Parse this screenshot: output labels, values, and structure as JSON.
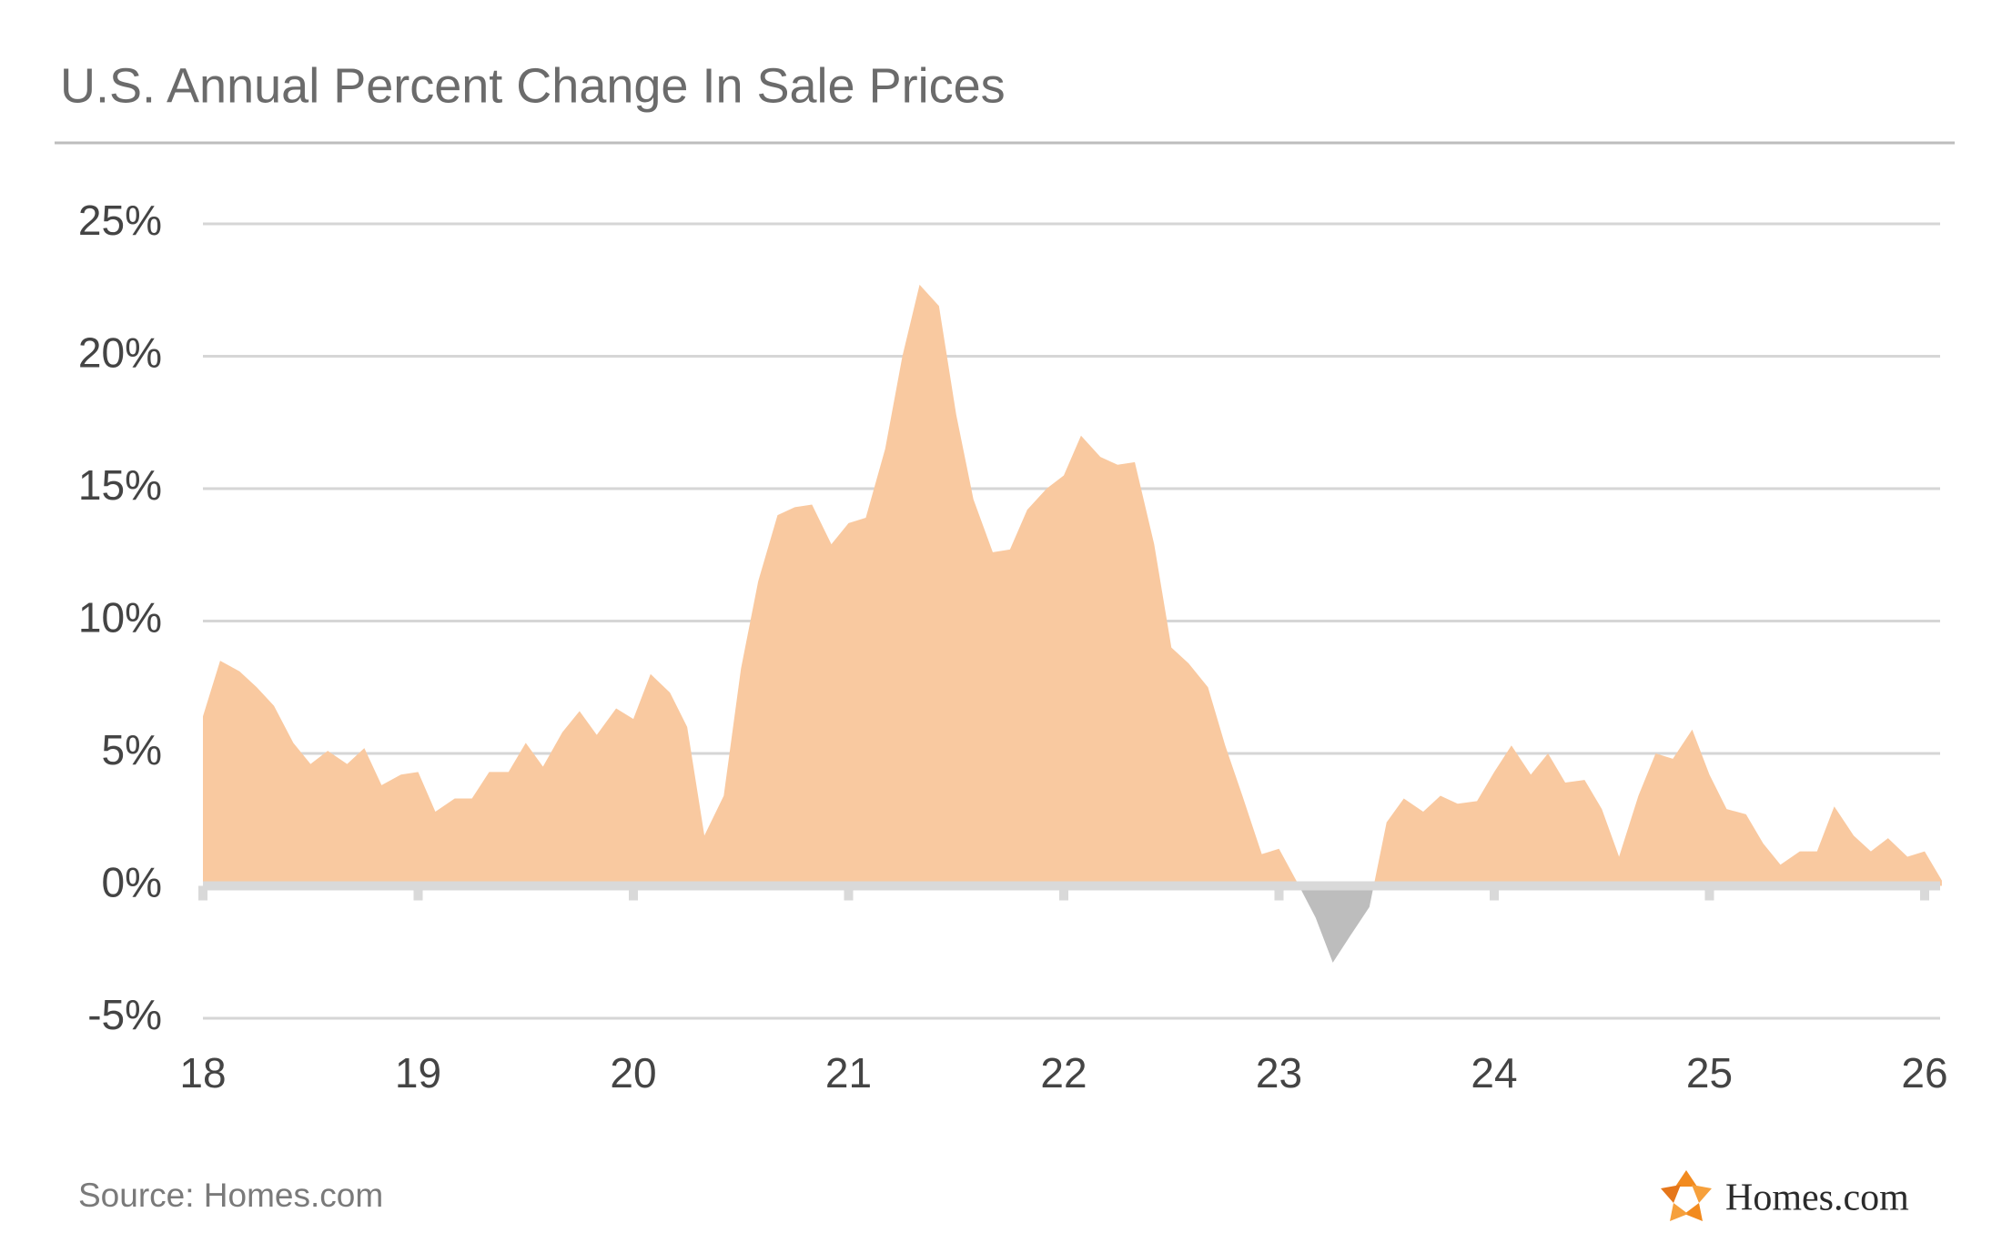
{
  "chart_data": {
    "type": "area",
    "title": "U.S. Annual Percent Change In Sale Prices",
    "source": "Source: Homes.com",
    "logo": "Homes.com",
    "color": "#f9c9a0",
    "negative_color": "#bdbdbd",
    "x": [
      18,
      18.08,
      18.17,
      18.25,
      18.33,
      18.42,
      18.5,
      18.58,
      18.67,
      18.75,
      18.83,
      18.92,
      19,
      19.08,
      19.17,
      19.25,
      19.33,
      19.42,
      19.5,
      19.58,
      19.67,
      19.75,
      19.83,
      19.92,
      20,
      20.08,
      20.17,
      20.25,
      20.33,
      20.42,
      20.5,
      20.58,
      20.67,
      20.75,
      20.83,
      20.92,
      21,
      21.08,
      21.17,
      21.25,
      21.33,
      21.42,
      21.5,
      21.58,
      21.67,
      21.75,
      21.83,
      21.92,
      22,
      22.08,
      22.17,
      22.25,
      22.33,
      22.42,
      22.5,
      22.58,
      22.67,
      22.75,
      22.83,
      22.92,
      23,
      23.08,
      23.17,
      23.25,
      23.33,
      23.42,
      23.5,
      23.58,
      23.67,
      23.75,
      23.83,
      23.92,
      24,
      24.08,
      24.17,
      24.25,
      24.33,
      24.42,
      24.5,
      24.58,
      24.67,
      24.75,
      24.83,
      24.92,
      25,
      25.08,
      25.17,
      25.25,
      25.33,
      25.42,
      25.5,
      25.58,
      25.67,
      25.75,
      25.83,
      25.92,
      26,
      26.08
    ],
    "values": [
      6.4,
      8.5,
      8.1,
      7.5,
      6.8,
      5.4,
      4.6,
      5.1,
      4.6,
      5.2,
      3.8,
      4.2,
      4.3,
      2.8,
      3.3,
      3.3,
      4.3,
      4.3,
      5.4,
      4.5,
      5.8,
      6.6,
      5.7,
      6.7,
      6.3,
      8.0,
      7.3,
      6.0,
      1.9,
      3.4,
      8.2,
      11.5,
      14.0,
      14.3,
      14.4,
      12.9,
      13.7,
      13.9,
      16.5,
      20.0,
      22.7,
      21.9,
      17.8,
      14.6,
      12.6,
      12.7,
      14.2,
      15.0,
      15.5,
      17.0,
      16.2,
      15.9,
      16.0,
      12.9,
      9.0,
      8.4,
      7.5,
      5.3,
      3.4,
      1.2,
      1.4,
      0.2,
      -1.2,
      -2.9,
      -1.9,
      -0.8,
      2.4,
      3.3,
      2.8,
      3.4,
      3.1,
      3.2,
      4.3,
      5.3,
      4.2,
      5.0,
      3.9,
      4.0,
      2.9,
      1.1,
      3.4,
      5.0,
      4.8,
      5.9,
      4.2,
      2.9,
      2.7,
      1.6,
      0.8,
      1.3,
      1.3,
      3.0,
      1.9,
      1.3,
      1.8,
      1.1,
      1.3,
      0.2
    ],
    "xlim": [
      18,
      26
    ],
    "xticks": [
      18,
      19,
      20,
      21,
      22,
      23,
      24,
      25,
      26
    ],
    "ylim": [
      -5,
      25
    ],
    "yticks": [
      {
        "value": -5,
        "label": "-5%"
      },
      {
        "value": 0,
        "label": "0%"
      },
      {
        "value": 5,
        "label": "5%"
      },
      {
        "value": 10,
        "label": "10%"
      },
      {
        "value": 15,
        "label": "15%"
      },
      {
        "value": 20,
        "label": "20%"
      },
      {
        "value": 25,
        "label": "25%"
      }
    ],
    "grid": true
  }
}
